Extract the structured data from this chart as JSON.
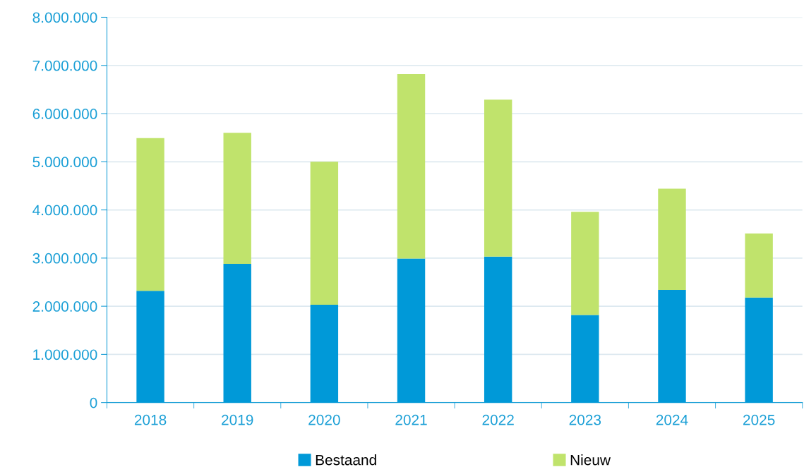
{
  "chart_data": {
    "type": "bar",
    "stacked": true,
    "categories": [
      "2018",
      "2019",
      "2020",
      "2021",
      "2022",
      "2023",
      "2024",
      "2025"
    ],
    "series": [
      {
        "name": "Bestaand",
        "color": "#0099d8",
        "values": [
          2320000,
          2880000,
          2030000,
          2990000,
          3030000,
          1820000,
          2340000,
          2180000
        ]
      },
      {
        "name": "Nieuw",
        "color": "#c0e36c",
        "values": [
          3170000,
          2720000,
          2970000,
          3830000,
          3260000,
          2140000,
          2100000,
          1330000
        ]
      }
    ],
    "ylim": [
      0,
      8000000
    ],
    "yticks": [
      {
        "value": 0,
        "label": "0"
      },
      {
        "value": 1000000,
        "label": "1.000.000"
      },
      {
        "value": 2000000,
        "label": "2.000.000"
      },
      {
        "value": 3000000,
        "label": "3.000.000"
      },
      {
        "value": 4000000,
        "label": "4.000.000"
      },
      {
        "value": 5000000,
        "label": "5.000.000"
      },
      {
        "value": 6000000,
        "label": "6.000.000"
      },
      {
        "value": 7000000,
        "label": "7.000.000"
      },
      {
        "value": 8000000,
        "label": "8.000.000"
      }
    ],
    "grid": "y",
    "legend": "bottom"
  }
}
